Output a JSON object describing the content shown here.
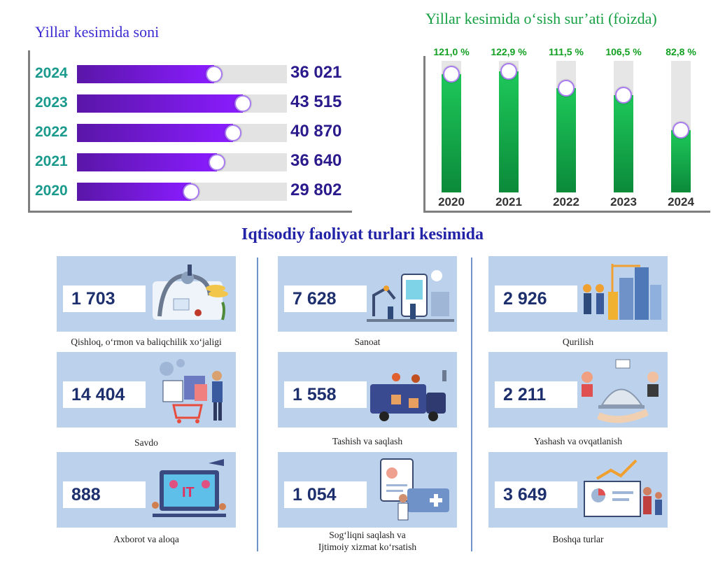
{
  "chart_data": [
    {
      "type": "bar",
      "orientation": "horizontal",
      "title": "Yillar kesimida soni",
      "categories": [
        "2024",
        "2023",
        "2022",
        "2021",
        "2020"
      ],
      "values": [
        36021,
        43515,
        40870,
        36640,
        29802
      ],
      "value_labels": [
        "36 021",
        "43 515",
        "40 870",
        "36 640",
        "29 802"
      ],
      "xlim": [
        0,
        55000
      ],
      "bar_color": "#8a1cff",
      "year_color": "#1a9a8c",
      "value_color": "#2a1a8c"
    },
    {
      "type": "bar",
      "orientation": "vertical",
      "title": "Yillar kesimida o‘sish sur’ati (foizda)",
      "categories": [
        "2020",
        "2021",
        "2022",
        "2023",
        "2024"
      ],
      "values": [
        121.0,
        122.9,
        111.5,
        106.5,
        82.8
      ],
      "value_labels": [
        "121,0 %",
        "122,9 %",
        "111,5 %",
        "106,5 %",
        "82,8 %"
      ],
      "ylim": [
        40,
        130
      ],
      "bar_color": "#0f9a45",
      "label_color": "#13a023"
    }
  ],
  "section_title": "Iqtisodiy faoliyat turlari kesimida",
  "cards": [
    {
      "value": "1 703",
      "caption": "Qishloq, o‘rmon va baliqchilik xo‘jaligi",
      "icon": "agriculture-illustration"
    },
    {
      "value": "7 628",
      "caption": "Sanoat",
      "icon": "industry-illustration"
    },
    {
      "value": "2 926",
      "caption": "Qurilish",
      "icon": "construction-illustration"
    },
    {
      "value": "14 404",
      "caption": "Savdo",
      "icon": "shopping-illustration"
    },
    {
      "value": "1 558",
      "caption": "Tashish va saqlash",
      "icon": "delivery-truck-illustration"
    },
    {
      "value": "2 211",
      "caption": "Yashash va ovqatlanish",
      "icon": "food-service-illustration"
    },
    {
      "value": "888",
      "caption": "Axborot va aloqa",
      "icon": "it-illustration"
    },
    {
      "value": "1 054",
      "caption": "Sog‘liqni saqlash va\nIjtimoiy xizmat ko‘rsatish",
      "icon": "healthcare-illustration"
    },
    {
      "value": "3 649",
      "caption": "Boshqa turlar",
      "icon": "analytics-illustration"
    }
  ]
}
